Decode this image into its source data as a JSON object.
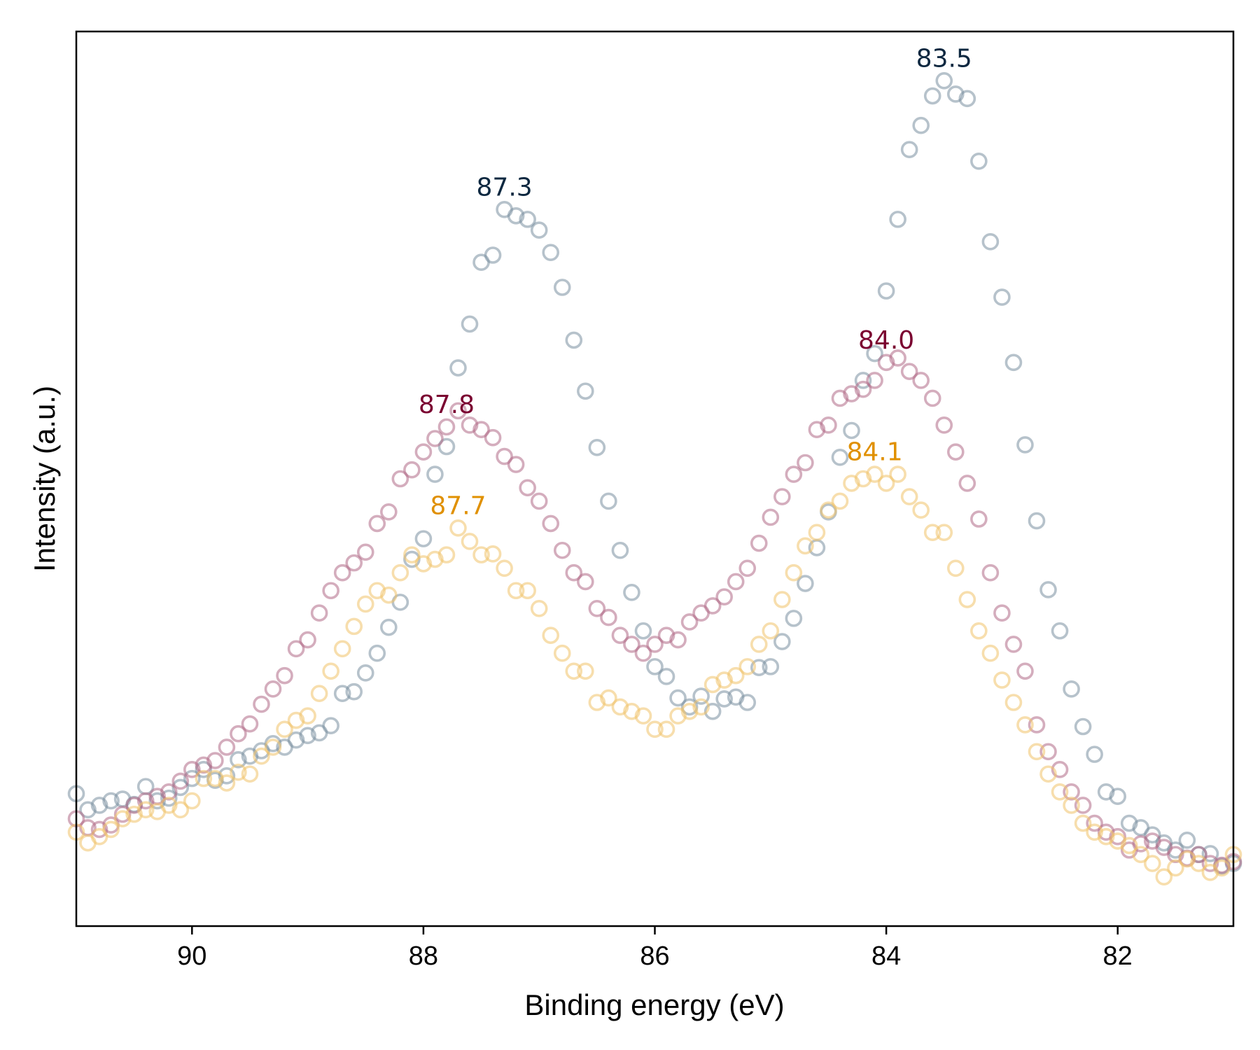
{
  "chart_data": {
    "type": "scatter",
    "xlabel": "Binding energy (eV)",
    "ylabel": "Intensity (a.u.)",
    "xlim": [
      91.0,
      81.0
    ],
    "ylim": [
      0,
      100
    ],
    "x_reversed": true,
    "x_ticks": [
      "90",
      "88",
      "86",
      "84",
      "82"
    ],
    "x_tick_values": [
      90,
      88,
      86,
      84,
      82
    ],
    "y_ticks_shown": false,
    "grid": false,
    "legend": "none",
    "marker": "open-circle",
    "series": [
      {
        "color": "#7A8FA0",
        "peaks": [
          {
            "x": 87.3,
            "label": "87.3",
            "label_color": "#0D2840"
          },
          {
            "x": 83.5,
            "label": "83.5",
            "label_color": "#0D2840"
          }
        ],
        "points": [
          [
            91.0,
            14.8
          ],
          [
            90.9,
            13.0
          ],
          [
            90.8,
            13.5
          ],
          [
            90.7,
            14.0
          ],
          [
            90.6,
            14.2
          ],
          [
            90.5,
            13.6
          ],
          [
            90.4,
            15.6
          ],
          [
            90.3,
            14.0
          ],
          [
            90.2,
            14.3
          ],
          [
            90.1,
            15.5
          ],
          [
            90.0,
            16.5
          ],
          [
            89.9,
            17.5
          ],
          [
            89.8,
            16.3
          ],
          [
            89.7,
            16.8
          ],
          [
            89.6,
            18.6
          ],
          [
            89.5,
            19.0
          ],
          [
            89.4,
            19.6
          ],
          [
            89.3,
            20.4
          ],
          [
            89.2,
            20.0
          ],
          [
            89.1,
            20.8
          ],
          [
            89.0,
            21.3
          ],
          [
            88.9,
            21.6
          ],
          [
            88.8,
            22.4
          ],
          [
            88.7,
            26.0
          ],
          [
            88.6,
            26.2
          ],
          [
            88.5,
            28.3
          ],
          [
            88.4,
            30.5
          ],
          [
            88.3,
            33.4
          ],
          [
            88.2,
            36.2
          ],
          [
            88.1,
            41.0
          ],
          [
            88.0,
            43.3
          ],
          [
            87.9,
            50.5
          ],
          [
            87.8,
            53.6
          ],
          [
            87.7,
            62.4
          ],
          [
            87.6,
            67.3
          ],
          [
            87.5,
            74.2
          ],
          [
            87.4,
            75.0
          ],
          [
            87.3,
            80.1
          ],
          [
            87.2,
            79.4
          ],
          [
            87.1,
            79.0
          ],
          [
            87.0,
            77.8
          ],
          [
            86.9,
            75.3
          ],
          [
            86.8,
            71.4
          ],
          [
            86.7,
            65.5
          ],
          [
            86.6,
            59.8
          ],
          [
            86.5,
            53.5
          ],
          [
            86.4,
            47.5
          ],
          [
            86.3,
            42.0
          ],
          [
            86.2,
            37.3
          ],
          [
            86.1,
            33.0
          ],
          [
            86.0,
            29.0
          ],
          [
            85.9,
            27.9
          ],
          [
            85.8,
            25.5
          ],
          [
            85.7,
            24.5
          ],
          [
            85.6,
            25.7
          ],
          [
            85.5,
            24.0
          ],
          [
            85.4,
            25.4
          ],
          [
            85.3,
            25.6
          ],
          [
            85.2,
            25.0
          ],
          [
            85.1,
            28.9
          ],
          [
            85.0,
            29.0
          ],
          [
            84.9,
            31.8
          ],
          [
            84.8,
            34.4
          ],
          [
            84.7,
            38.3
          ],
          [
            84.6,
            42.3
          ],
          [
            84.5,
            46.3
          ],
          [
            84.4,
            52.4
          ],
          [
            84.3,
            55.4
          ],
          [
            84.2,
            61.0
          ],
          [
            84.1,
            64.0
          ],
          [
            84.0,
            71.0
          ],
          [
            83.9,
            79.0
          ],
          [
            83.8,
            86.8
          ],
          [
            83.7,
            89.5
          ],
          [
            83.6,
            92.8
          ],
          [
            83.5,
            94.5
          ],
          [
            83.4,
            93.0
          ],
          [
            83.3,
            92.5
          ],
          [
            83.2,
            85.5
          ],
          [
            83.1,
            76.5
          ],
          [
            83.0,
            70.3
          ],
          [
            82.9,
            63.0
          ],
          [
            82.8,
            53.8
          ],
          [
            82.7,
            45.3
          ],
          [
            82.6,
            37.6
          ],
          [
            82.5,
            33.0
          ],
          [
            82.4,
            26.5
          ],
          [
            82.3,
            22.3
          ],
          [
            82.2,
            19.2
          ],
          [
            82.1,
            15.0
          ],
          [
            82.0,
            14.5
          ],
          [
            81.9,
            11.5
          ],
          [
            81.8,
            11.0
          ],
          [
            81.7,
            10.2
          ],
          [
            81.6,
            9.3
          ],
          [
            81.5,
            8.5
          ],
          [
            81.4,
            9.6
          ],
          [
            81.3,
            8.0
          ],
          [
            81.2,
            8.1
          ],
          [
            81.1,
            6.7
          ],
          [
            81.0,
            7.0
          ]
        ]
      },
      {
        "color": "#B06A86",
        "peaks": [
          {
            "x": 87.8,
            "label": "87.8",
            "label_color": "#7A0030"
          },
          {
            "x": 84.0,
            "label": "84.0",
            "label_color": "#7A0030"
          }
        ],
        "points": [
          [
            91.0,
            12.0
          ],
          [
            90.9,
            11.0
          ],
          [
            90.8,
            10.8
          ],
          [
            90.7,
            11.3
          ],
          [
            90.6,
            12.5
          ],
          [
            90.5,
            13.5
          ],
          [
            90.4,
            14.0
          ],
          [
            90.3,
            14.5
          ],
          [
            90.2,
            15.0
          ],
          [
            90.1,
            16.2
          ],
          [
            90.0,
            17.5
          ],
          [
            89.9,
            18.0
          ],
          [
            89.8,
            18.5
          ],
          [
            89.7,
            20.0
          ],
          [
            89.6,
            21.5
          ],
          [
            89.5,
            22.6
          ],
          [
            89.4,
            24.8
          ],
          [
            89.3,
            26.5
          ],
          [
            89.2,
            28.0
          ],
          [
            89.1,
            31.0
          ],
          [
            89.0,
            32.0
          ],
          [
            88.9,
            35.0
          ],
          [
            88.8,
            37.5
          ],
          [
            88.7,
            39.5
          ],
          [
            88.6,
            40.6
          ],
          [
            88.5,
            41.8
          ],
          [
            88.4,
            45.0
          ],
          [
            88.3,
            46.3
          ],
          [
            88.2,
            50.0
          ],
          [
            88.1,
            51.0
          ],
          [
            88.0,
            53.0
          ],
          [
            87.9,
            54.5
          ],
          [
            87.8,
            55.8
          ],
          [
            87.7,
            57.6
          ],
          [
            87.6,
            56.0
          ],
          [
            87.5,
            55.5
          ],
          [
            87.4,
            54.6
          ],
          [
            87.3,
            52.5
          ],
          [
            87.2,
            51.6
          ],
          [
            87.1,
            49.0
          ],
          [
            87.0,
            47.5
          ],
          [
            86.9,
            45.0
          ],
          [
            86.8,
            42.0
          ],
          [
            86.7,
            39.5
          ],
          [
            86.6,
            38.5
          ],
          [
            86.5,
            35.5
          ],
          [
            86.4,
            34.5
          ],
          [
            86.3,
            32.5
          ],
          [
            86.2,
            31.5
          ],
          [
            86.1,
            30.5
          ],
          [
            86.0,
            31.5
          ],
          [
            85.9,
            32.5
          ],
          [
            85.8,
            32.0
          ],
          [
            85.7,
            34.0
          ],
          [
            85.6,
            35.0
          ],
          [
            85.5,
            35.8
          ],
          [
            85.4,
            36.8
          ],
          [
            85.3,
            38.5
          ],
          [
            85.2,
            40.0
          ],
          [
            85.1,
            42.8
          ],
          [
            85.0,
            45.7
          ],
          [
            84.9,
            48.0
          ],
          [
            84.8,
            50.5
          ],
          [
            84.7,
            51.8
          ],
          [
            84.6,
            55.5
          ],
          [
            84.5,
            56.0
          ],
          [
            84.4,
            59.0
          ],
          [
            84.3,
            59.5
          ],
          [
            84.2,
            60.0
          ],
          [
            84.1,
            61.0
          ],
          [
            84.0,
            63.0
          ],
          [
            83.9,
            63.5
          ],
          [
            83.8,
            62.0
          ],
          [
            83.7,
            61.0
          ],
          [
            83.6,
            59.0
          ],
          [
            83.5,
            56.0
          ],
          [
            83.4,
            53.0
          ],
          [
            83.3,
            49.5
          ],
          [
            83.2,
            45.5
          ],
          [
            83.1,
            39.5
          ],
          [
            83.0,
            35.0
          ],
          [
            82.9,
            31.5
          ],
          [
            82.8,
            28.5
          ],
          [
            82.7,
            22.5
          ],
          [
            82.6,
            19.5
          ],
          [
            82.5,
            17.5
          ],
          [
            82.4,
            15.0
          ],
          [
            82.3,
            13.5
          ],
          [
            82.2,
            11.5
          ],
          [
            82.1,
            10.5
          ],
          [
            82.0,
            10.0
          ],
          [
            81.9,
            8.5
          ],
          [
            81.8,
            9.2
          ],
          [
            81.7,
            9.5
          ],
          [
            81.6,
            8.8
          ],
          [
            81.5,
            8.0
          ],
          [
            81.4,
            7.6
          ],
          [
            81.3,
            8.0
          ],
          [
            81.2,
            7.0
          ],
          [
            81.1,
            6.8
          ],
          [
            81.0,
            7.2
          ]
        ]
      },
      {
        "color": "#F0C26A",
        "peaks": [
          {
            "x": 87.7,
            "label": "87.7",
            "label_color": "#E09000"
          },
          {
            "x": 84.1,
            "label": "84.1",
            "label_color": "#E09000"
          }
        ],
        "points": [
          [
            91.0,
            10.5
          ],
          [
            90.9,
            9.3
          ],
          [
            90.8,
            10.0
          ],
          [
            90.7,
            10.8
          ],
          [
            90.6,
            12.0
          ],
          [
            90.5,
            12.5
          ],
          [
            90.4,
            13.0
          ],
          [
            90.3,
            12.8
          ],
          [
            90.2,
            13.5
          ],
          [
            90.1,
            13.0
          ],
          [
            90.0,
            14.0
          ],
          [
            89.9,
            16.5
          ],
          [
            89.8,
            16.5
          ],
          [
            89.7,
            16.0
          ],
          [
            89.6,
            17.2
          ],
          [
            89.5,
            17.0
          ],
          [
            89.4,
            19.0
          ],
          [
            89.3,
            20.0
          ],
          [
            89.2,
            22.0
          ],
          [
            89.1,
            23.0
          ],
          [
            89.0,
            23.5
          ],
          [
            88.9,
            26.0
          ],
          [
            88.8,
            28.5
          ],
          [
            88.7,
            31.0
          ],
          [
            88.6,
            33.5
          ],
          [
            88.5,
            36.0
          ],
          [
            88.4,
            37.5
          ],
          [
            88.3,
            37.0
          ],
          [
            88.2,
            39.5
          ],
          [
            88.1,
            41.5
          ],
          [
            88.0,
            40.5
          ],
          [
            87.9,
            41.0
          ],
          [
            87.8,
            41.5
          ],
          [
            87.7,
            44.5
          ],
          [
            87.6,
            43.0
          ],
          [
            87.5,
            41.5
          ],
          [
            87.4,
            41.6
          ],
          [
            87.3,
            40.0
          ],
          [
            87.2,
            37.5
          ],
          [
            87.1,
            37.5
          ],
          [
            87.0,
            35.5
          ],
          [
            86.9,
            32.5
          ],
          [
            86.8,
            30.5
          ],
          [
            86.7,
            28.5
          ],
          [
            86.6,
            28.5
          ],
          [
            86.5,
            25.0
          ],
          [
            86.4,
            25.5
          ],
          [
            86.3,
            24.5
          ],
          [
            86.2,
            24.0
          ],
          [
            86.1,
            23.5
          ],
          [
            86.0,
            22.0
          ],
          [
            85.9,
            22.0
          ],
          [
            85.8,
            23.5
          ],
          [
            85.7,
            24.0
          ],
          [
            85.6,
            24.5
          ],
          [
            85.5,
            27.0
          ],
          [
            85.4,
            27.5
          ],
          [
            85.3,
            28.0
          ],
          [
            85.2,
            29.0
          ],
          [
            85.1,
            31.5
          ],
          [
            85.0,
            33.0
          ],
          [
            84.9,
            36.5
          ],
          [
            84.8,
            39.5
          ],
          [
            84.7,
            42.5
          ],
          [
            84.6,
            44.0
          ],
          [
            84.5,
            46.5
          ],
          [
            84.4,
            47.5
          ],
          [
            84.3,
            49.5
          ],
          [
            84.2,
            50.0
          ],
          [
            84.1,
            50.5
          ],
          [
            84.0,
            49.5
          ],
          [
            83.9,
            50.5
          ],
          [
            83.8,
            48.0
          ],
          [
            83.7,
            46.5
          ],
          [
            83.6,
            44.0
          ],
          [
            83.5,
            44.0
          ],
          [
            83.4,
            40.0
          ],
          [
            83.3,
            36.5
          ],
          [
            83.2,
            33.0
          ],
          [
            83.1,
            30.5
          ],
          [
            83.0,
            27.5
          ],
          [
            82.9,
            25.0
          ],
          [
            82.8,
            22.5
          ],
          [
            82.7,
            19.5
          ],
          [
            82.6,
            17.0
          ],
          [
            82.5,
            15.0
          ],
          [
            82.4,
            13.5
          ],
          [
            82.3,
            11.5
          ],
          [
            82.2,
            10.5
          ],
          [
            82.1,
            10.0
          ],
          [
            82.0,
            9.5
          ],
          [
            81.9,
            9.0
          ],
          [
            81.8,
            8.0
          ],
          [
            81.7,
            7.0
          ],
          [
            81.6,
            5.5
          ],
          [
            81.5,
            6.5
          ],
          [
            81.4,
            7.5
          ],
          [
            81.3,
            7.0
          ],
          [
            81.2,
            6.0
          ],
          [
            81.1,
            6.5
          ],
          [
            81.0,
            8.0
          ]
        ]
      }
    ]
  }
}
